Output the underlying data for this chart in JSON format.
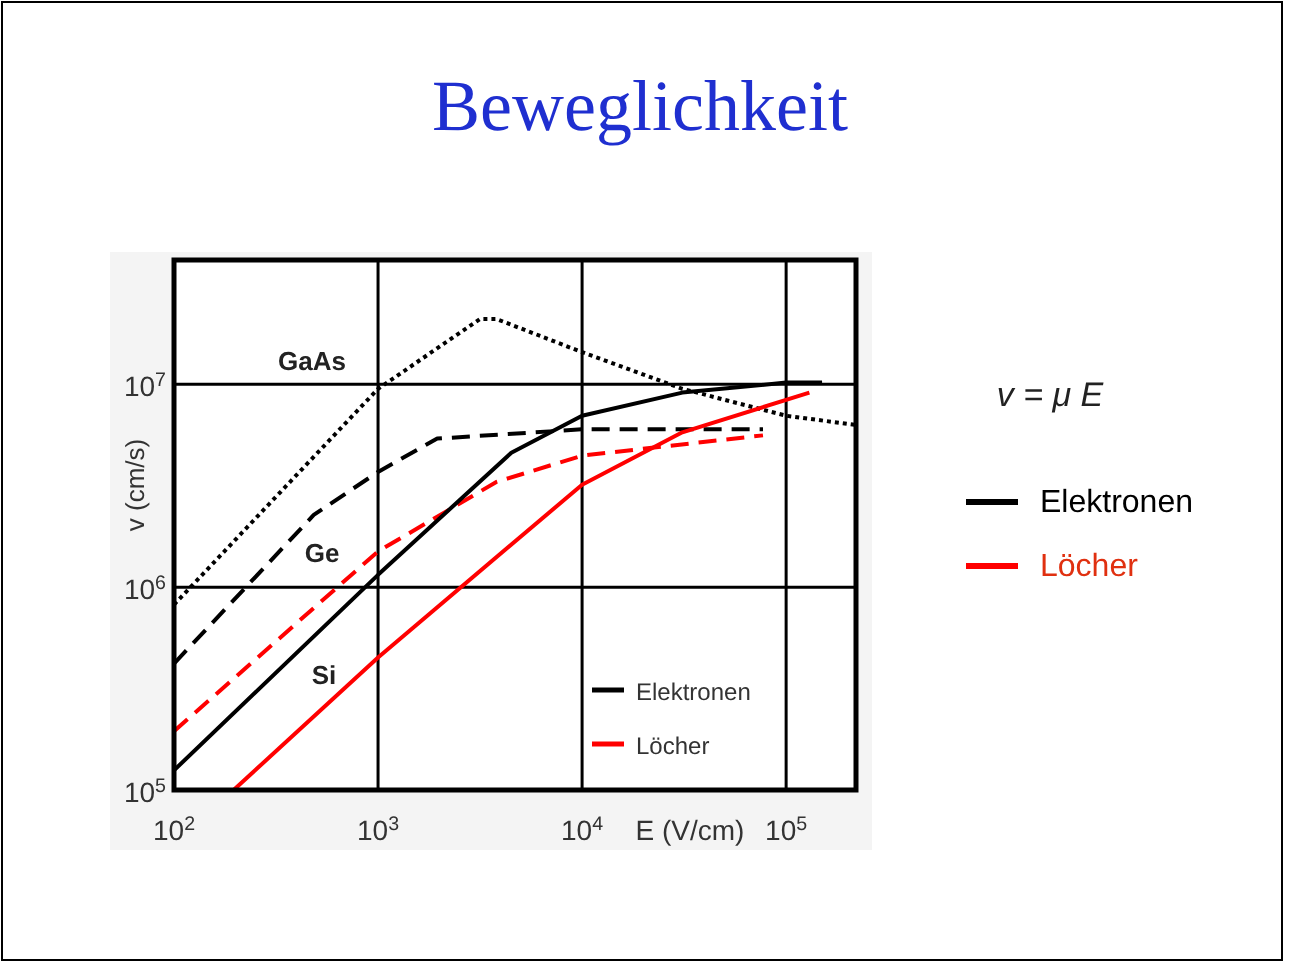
{
  "chart_data": {
    "type": "line",
    "title": "Beweglichkeit",
    "xlabel": "E (V/cm)",
    "ylabel": "v (cm/s)",
    "log": "xy",
    "grid": true,
    "legend": "bottom right",
    "xlim": [
      100,
      220000
    ],
    "ylim": [
      100000,
      41000000
    ],
    "xticks": [
      {
        "value": 100,
        "label": "10$^{2}$"
      },
      {
        "value": 1000,
        "label": "10$^{3}$"
      },
      {
        "value": 10000,
        "label": "10$^{4}$"
      },
      {
        "value": 100000,
        "label": "10$^{5}$"
      }
    ],
    "yticks": [
      {
        "value": 100000,
        "label": "10$^{5}$"
      },
      {
        "value": 1000000,
        "label": "10$^{6}$"
      },
      {
        "value": 10000000,
        "label": "10$^{7}$"
      }
    ],
    "series": [
      {
        "color": "#000000",
        "line_style": "dotted",
        "x": [
          100,
          1000,
          3162,
          3800,
          10000,
          31000,
          100000,
          220000
        ],
        "values": [
          820000,
          9500000,
          21000000,
          21000000,
          14400000,
          9500000,
          7000000,
          6300000
        ]
      },
      {
        "color": "#000000",
        "line_style": "dashed",
        "x": [
          100,
          484,
          1000,
          1950,
          10000,
          77000
        ],
        "values": [
          420000,
          2270000,
          3700000,
          5400000,
          6000000,
          6000000
        ]
      },
      {
        "color": "#ff0000",
        "line_style": "dashed",
        "x": [
          100,
          1000,
          3800,
          10000,
          77000
        ],
        "values": [
          195000,
          1500000,
          3300000,
          4450000,
          5600000
        ]
      },
      {
        "name": "Elektronen",
        "color": "#000000",
        "line_style": "solid",
        "x": [
          100,
          1000,
          4500,
          10000,
          31000,
          100000,
          150000
        ],
        "values": [
          125000,
          1150000,
          4600000,
          7000000,
          9100000,
          10200000,
          10200000
        ]
      },
      {
        "name": "Löcher",
        "color": "#ff0000",
        "line_style": "solid",
        "x": [
          196,
          1000,
          10000,
          31000,
          130000
        ],
        "values": [
          100000,
          450000,
          3200000,
          5800000,
          9100000
        ]
      }
    ],
    "annotations": [
      "GaAs",
      "Ge",
      "Si",
      "v = μ E"
    ]
  }
}
